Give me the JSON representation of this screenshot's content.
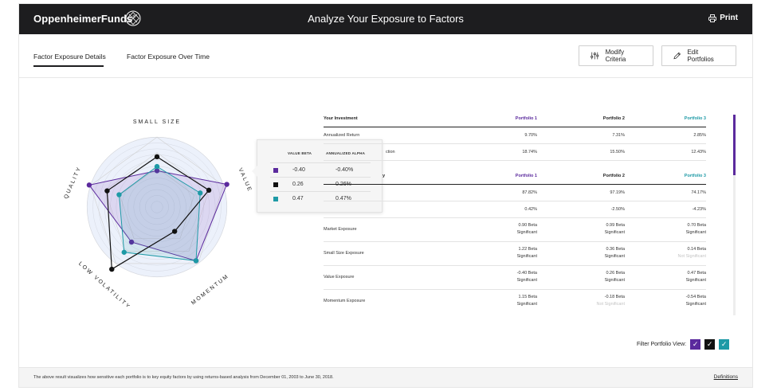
{
  "header": {
    "brand": "OppenheimerFunds",
    "brand_mark": "®",
    "title": "Analyze Your Exposure to Factors",
    "print_label": "Print",
    "print_icon": "printer-icon"
  },
  "tabs": [
    {
      "label": "Factor Exposure Details",
      "active": true
    },
    {
      "label": "Factor Exposure Over Time",
      "active": false
    }
  ],
  "actions": {
    "modify_label": "Modify Criteria",
    "modify_icon": "sliders-icon",
    "edit_label": "Edit Portfolios",
    "edit_icon": "pencil-icon"
  },
  "colors": {
    "portfolio1": "#5b2a9d",
    "portfolio2": "#111111",
    "portfolio3": "#1e9aa6"
  },
  "radar": {
    "axes": [
      "SMALL SIZE",
      "VALUE",
      "MOMENTUM",
      "LOW VOLATILITY",
      "QUALITY"
    ],
    "series": [
      {
        "values": [
          1.22,
          -0.4,
          1.15,
          null,
          null
        ]
      },
      {
        "values": [
          0.36,
          0.26,
          -0.18,
          null,
          null
        ]
      },
      {
        "values": [
          0.14,
          0.47,
          -0.54,
          null,
          null
        ]
      }
    ]
  },
  "tooltip": {
    "head1": "VALUE BETA",
    "head2": "ANNUALIZED ALPHA",
    "rows": [
      {
        "beta": "-0.40",
        "alpha": "-0.40%"
      },
      {
        "beta": "0.26",
        "alpha": "0.26%"
      },
      {
        "beta": "0.47",
        "alpha": "0.47%"
      }
    ]
  },
  "table": {
    "section1": {
      "header": [
        "Your Investment",
        "Portfolio 1",
        "Portfolio 2",
        "Portfolio 3"
      ],
      "rows": [
        [
          "Annualized Return",
          "9.70%",
          "7.31%",
          "2.85%"
        ],
        [
          "ction",
          "18.74%",
          "15.50%",
          "12.43%"
        ]
      ]
    },
    "section2": {
      "header": [
        "y",
        "Portfolio 1",
        "Portfolio 2",
        "Portfolio 3"
      ],
      "rows": [
        [
          "",
          "87.82%",
          "97.19%",
          "74.17%"
        ],
        [
          "",
          "0.42%",
          "-2.50%",
          "-4.23%"
        ]
      ]
    },
    "exposures": [
      {
        "label": "Market Exposure",
        "p1": [
          "0.90 Beta",
          "Significant"
        ],
        "p2": [
          "0.99 Beta",
          "Significant"
        ],
        "p3": [
          "0.70 Beta",
          "Significant"
        ]
      },
      {
        "label": "Small Size Exposure",
        "p1": [
          "1.22 Beta",
          "Significant"
        ],
        "p2": [
          "0.36 Beta",
          "Significant"
        ],
        "p3": [
          "0.14 Beta",
          "Not Significant"
        ]
      },
      {
        "label": "Value Exposure",
        "p1": [
          "-0.40 Beta",
          "Significant"
        ],
        "p2": [
          "0.26 Beta",
          "Significant"
        ],
        "p3": [
          "0.47 Beta",
          "Significant"
        ]
      },
      {
        "label": "Momentum Exposure",
        "p1": [
          "1.15 Beta",
          "Significant"
        ],
        "p2": [
          "-0.18 Beta",
          "Not Significant"
        ],
        "p3": [
          "-0.54 Beta",
          "Significant"
        ]
      }
    ]
  },
  "filter": {
    "label": "Filter Portfolio View:",
    "check": "✓"
  },
  "footer": {
    "note": "The above result visualizes how sensitive each portfolio is to key equity factors by using returns-based analysis from December 01, 2003 to June 30, 2018.",
    "definitions": "Definitions"
  }
}
